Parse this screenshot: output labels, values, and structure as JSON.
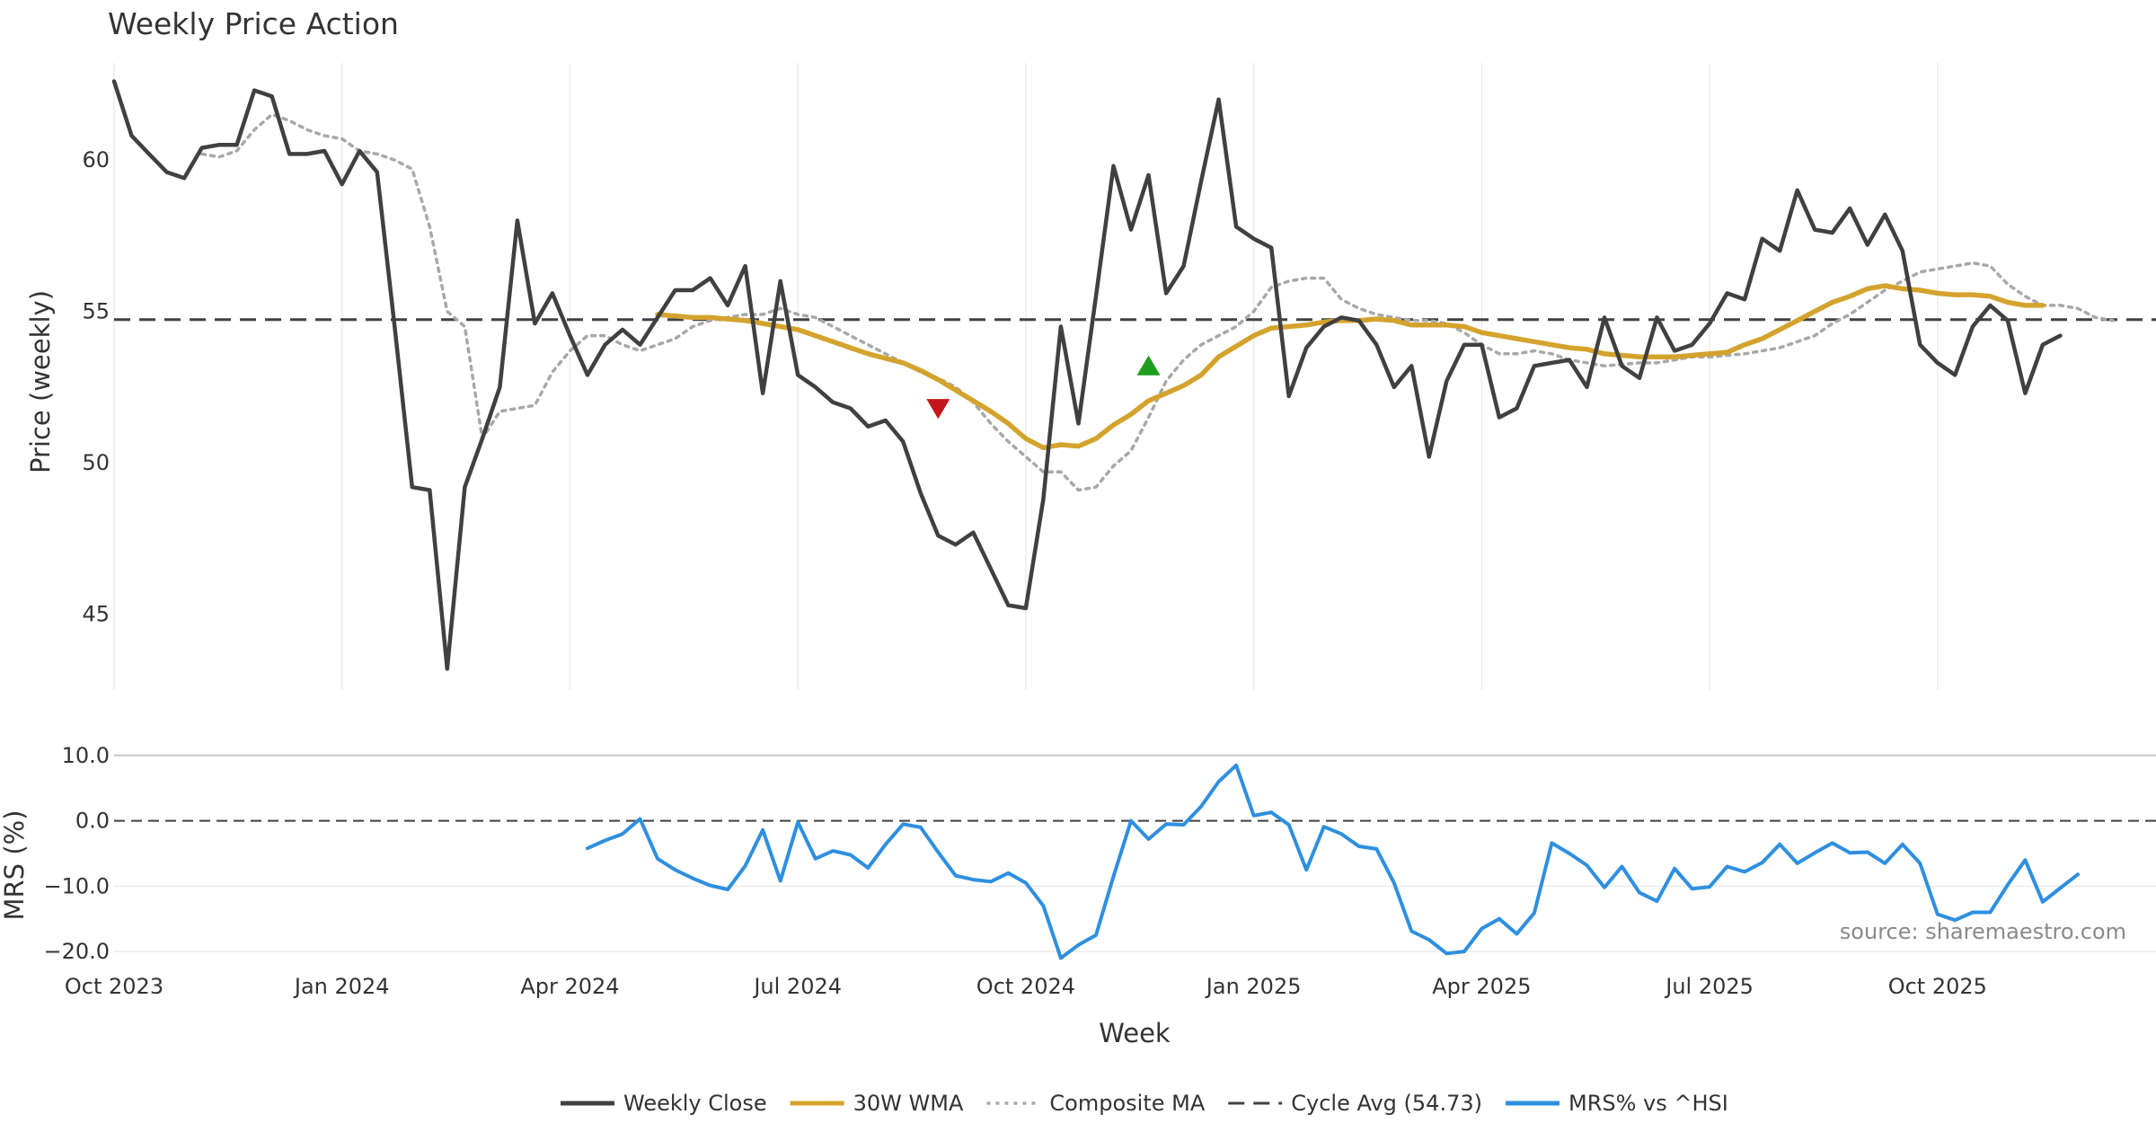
{
  "chart_data": {
    "type": "line",
    "title": "Weekly Price Action",
    "xlabel": "Week",
    "source_note": "source: sharemaestro.com",
    "x_ticks": [
      "Oct 2023",
      "Jan 2024",
      "Apr 2024",
      "Jul 2024",
      "Oct 2024",
      "Jan 2025",
      "Apr 2025",
      "Jul 2025",
      "Oct 2025"
    ],
    "x_range_weeks": [
      0,
      114
    ],
    "price_panel": {
      "ylabel": "Price (weekly)",
      "ylim": [
        42.5,
        63.8
      ],
      "y_ticks": [
        "45",
        "50",
        "55",
        "60"
      ],
      "y_tick_values": [
        45,
        50,
        55,
        60
      ],
      "cycle_avg": 54.73,
      "series": [
        {
          "name": "Weekly Close",
          "color": "#404040",
          "start_week": 0,
          "values": [
            62.6,
            60.8,
            60.2,
            59.6,
            59.4,
            60.4,
            60.5,
            60.5,
            62.3,
            62.1,
            60.2,
            60.2,
            60.3,
            59.2,
            60.3,
            59.6,
            54.5,
            49.2,
            49.1,
            43.2,
            49.2,
            50.8,
            52.5,
            58.0,
            54.6,
            55.6,
            54.2,
            52.9,
            53.9,
            54.4,
            53.9,
            54.8,
            55.7,
            55.7,
            56.1,
            55.2,
            56.5,
            52.3,
            56.0,
            52.9,
            52.5,
            52.0,
            51.8,
            51.2,
            51.4,
            50.7,
            49.0,
            47.6,
            47.3,
            47.7,
            46.5,
            45.3,
            45.2,
            48.8,
            54.5,
            51.3,
            55.5,
            59.8,
            57.7,
            59.5,
            55.6,
            56.5,
            59.3,
            62.0,
            57.8,
            57.4,
            57.1,
            52.2,
            53.8,
            54.5,
            54.8,
            54.7,
            53.9,
            52.5,
            53.2,
            50.2,
            52.7,
            53.9,
            53.9,
            51.5,
            51.8,
            53.2,
            53.3,
            53.4,
            52.5,
            54.8,
            53.2,
            52.8,
            54.8,
            53.7,
            53.9,
            54.6,
            55.6,
            55.4,
            57.4,
            57.0,
            59.0,
            57.7,
            57.6,
            58.4,
            57.2,
            58.2,
            57.0,
            53.9,
            53.3,
            52.9,
            54.5,
            55.2,
            54.7,
            52.3,
            53.9,
            54.2
          ]
        },
        {
          "name": "30W WMA",
          "color": "#d4a32e",
          "start_week": 31,
          "values": [
            54.9,
            54.85,
            54.8,
            54.8,
            54.75,
            54.7,
            54.6,
            54.5,
            54.4,
            54.2,
            54.0,
            53.8,
            53.6,
            53.45,
            53.3,
            53.05,
            52.75,
            52.4,
            52.05,
            51.7,
            51.3,
            50.8,
            50.5,
            50.6,
            50.55,
            50.8,
            51.25,
            51.6,
            52.05,
            52.3,
            52.55,
            52.9,
            53.5,
            53.85,
            54.2,
            54.45,
            54.5,
            54.55,
            54.65,
            54.7,
            54.7,
            54.75,
            54.7,
            54.55,
            54.55,
            54.55,
            54.5,
            54.3,
            54.2,
            54.1,
            54.0,
            53.9,
            53.8,
            53.75,
            53.6,
            53.55,
            53.5,
            53.5,
            53.5,
            53.55,
            53.6,
            53.65,
            53.9,
            54.1,
            54.4,
            54.7,
            55.0,
            55.3,
            55.5,
            55.75,
            55.85,
            55.75,
            55.7,
            55.6,
            55.55,
            55.55,
            55.5,
            55.3,
            55.2,
            55.2
          ]
        },
        {
          "name": "Composite MA",
          "color": "#a8a8a8",
          "dash": "dot",
          "start_week": 5,
          "values": [
            60.2,
            60.1,
            60.3,
            61.0,
            61.5,
            61.3,
            61.0,
            60.8,
            60.7,
            60.3,
            60.2,
            60.0,
            59.7,
            57.8,
            55.0,
            54.5,
            50.8,
            51.7,
            51.8,
            51.9,
            53.0,
            53.7,
            54.2,
            54.2,
            53.9,
            53.7,
            53.9,
            54.1,
            54.5,
            54.7,
            54.8,
            54.9,
            54.9,
            55.1,
            54.9,
            54.8,
            54.5,
            54.2,
            53.9,
            53.6,
            53.3,
            53.0,
            52.8,
            52.5,
            52.0,
            51.3,
            50.7,
            50.2,
            49.7,
            49.7,
            49.1,
            49.2,
            49.9,
            50.4,
            51.5,
            52.7,
            53.4,
            53.9,
            54.2,
            54.5,
            55.0,
            55.8,
            56.0,
            56.1,
            56.1,
            55.4,
            55.1,
            54.9,
            54.8,
            54.7,
            54.7,
            54.6,
            54.3,
            53.9,
            53.6,
            53.6,
            53.7,
            53.6,
            53.4,
            53.3,
            53.2,
            53.25,
            53.3,
            53.3,
            53.4,
            53.5,
            53.5,
            53.55,
            53.6,
            53.7,
            53.8,
            54.0,
            54.2,
            54.6,
            54.9,
            55.3,
            55.7,
            56.0,
            56.3,
            56.4,
            56.5,
            56.6,
            56.5,
            55.9,
            55.5,
            55.2,
            55.2,
            55.1,
            54.8,
            54.7
          ]
        }
      ],
      "markers": [
        {
          "type": "sell",
          "shape": "triangle-down",
          "color": "#c4161c",
          "week": 47,
          "value": 51.8
        },
        {
          "type": "buy",
          "shape": "triangle-up",
          "color": "#1e9e1e",
          "week": 59,
          "value": 53.2
        }
      ]
    },
    "mrs_panel": {
      "ylabel": "MRS (%)",
      "ylim": [
        -21.5,
        11.5
      ],
      "y_ticks": [
        "10.0",
        "0.0",
        "−10.0",
        "−20.0"
      ],
      "y_tick_values": [
        10,
        0,
        -10,
        -20
      ],
      "series": [
        {
          "name": "MRS% vs ^HSI",
          "color": "#2e8fe0",
          "start_week": 27,
          "values": [
            -4.2,
            -3.0,
            -2.0,
            0.3,
            -5.8,
            -7.5,
            -8.8,
            -9.9,
            -10.5,
            -6.9,
            -1.4,
            -9.2,
            -0.2,
            -5.8,
            -4.6,
            -5.2,
            -7.2,
            -3.6,
            -0.5,
            -1.0,
            -4.8,
            -8.4,
            -9.0,
            -9.3,
            -8.0,
            -9.5,
            -13.0,
            -21.0,
            -19.0,
            -17.5,
            -8.5,
            0.0,
            -2.8,
            -0.5,
            -0.6,
            2.2,
            6.0,
            8.5,
            0.8,
            1.3,
            -0.6,
            -7.5,
            -0.9,
            -2.0,
            -3.9,
            -4.3,
            -9.5,
            -16.9,
            -18.2,
            -20.3,
            -20.0,
            -16.5,
            -15.0,
            -17.3,
            -14.1,
            -3.4,
            -5.0,
            -6.8,
            -10.2,
            -7.0,
            -11.0,
            -12.3,
            -7.3,
            -10.4,
            -10.1,
            -7.0,
            -7.8,
            -6.4,
            -3.6,
            -6.5,
            -4.9,
            -3.4,
            -4.9,
            -4.8,
            -6.5,
            -3.6,
            -6.5,
            -14.3,
            -15.2,
            -14.0,
            -14.0,
            -9.8,
            -6.0,
            -12.4,
            -10.3,
            -8.2
          ]
        }
      ]
    },
    "legend": {
      "placement": "bottom-center",
      "entries": [
        {
          "label": "Weekly Close",
          "color": "#404040",
          "style": "solid-thick"
        },
        {
          "label": "30W WMA",
          "color": "#d4a32e",
          "style": "solid-thick"
        },
        {
          "label": "Composite MA",
          "color": "#a8a8a8",
          "style": "dotted"
        },
        {
          "label": "Cycle Avg (54.73)",
          "color": "#404040",
          "style": "dashed"
        },
        {
          "label": "MRS% vs ^HSI",
          "color": "#2e8fe0",
          "style": "solid-thick"
        }
      ]
    }
  }
}
